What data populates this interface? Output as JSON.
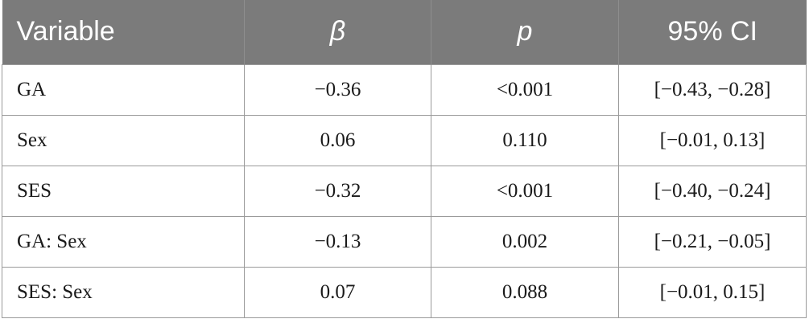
{
  "table": {
    "headers": [
      "Variable",
      "β",
      "p",
      "95% CI"
    ],
    "rows": [
      [
        "GA",
        "−0.36",
        "<0.001",
        "[−0.43, −0.28]"
      ],
      [
        "Sex",
        "0.06",
        "0.110",
        "[−0.01, 0.13]"
      ],
      [
        "SES",
        "−0.32",
        "<0.001",
        "[−0.40, −0.24]"
      ],
      [
        "GA: Sex",
        "−0.13",
        "0.002",
        "[−0.21, −0.05]"
      ],
      [
        "SES: Sex",
        "0.07",
        "0.088",
        "[−0.01, 0.15]"
      ]
    ]
  },
  "colors": {
    "header_background": "#7b7b7b",
    "header_text": "#ffffff",
    "grid_lines": "#9a9a9a"
  }
}
